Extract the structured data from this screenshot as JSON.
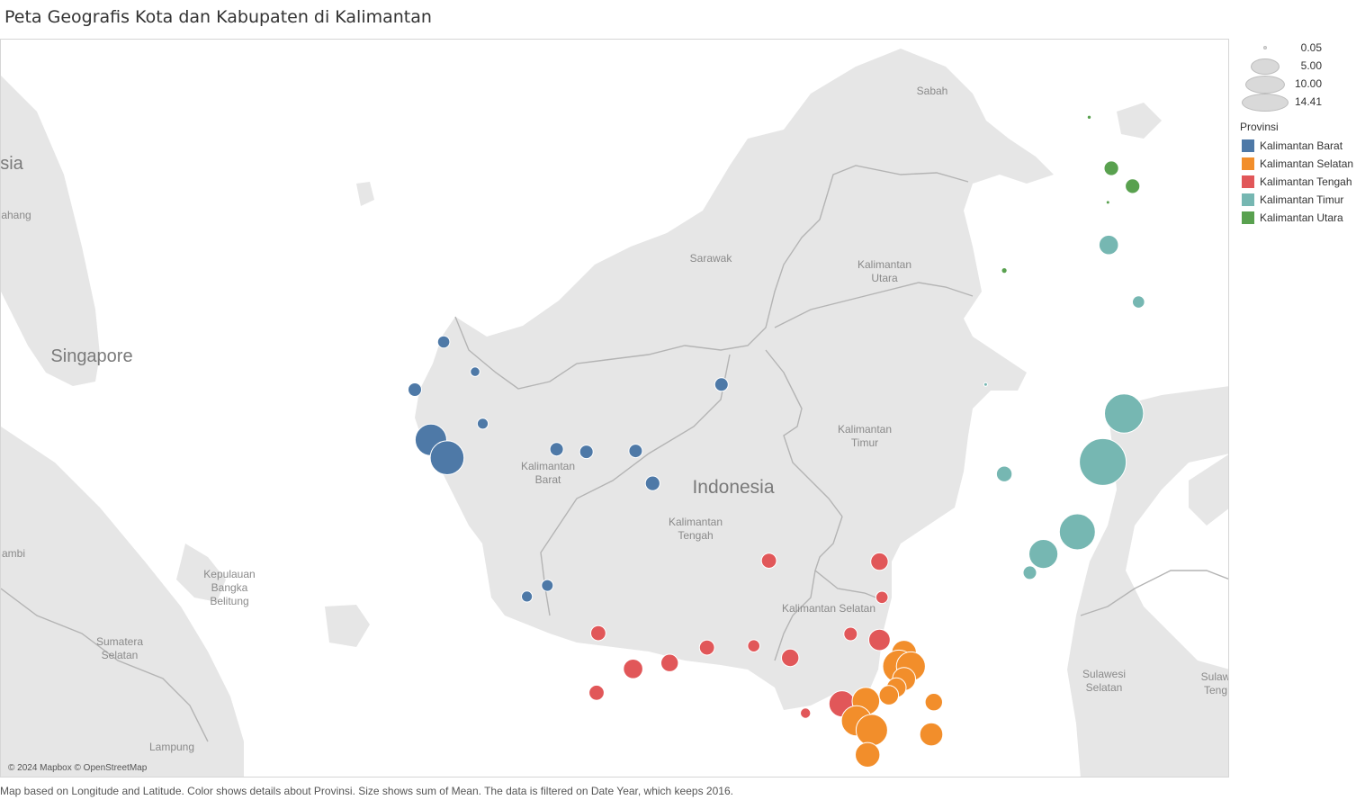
{
  "title": "Peta Geografis Kota dan Kabupaten di Kalimantan",
  "attribution": "© 2024 Mapbox © OpenStreetMap",
  "caption": "Map based on Longitude and Latitude.  Color shows details about Provinsi.  Size shows sum of Mean. The data is filtered on Date Year, which keeps 2016.",
  "colors": {
    "water": "#ffffff",
    "land": "#e6e6e6",
    "border": "#b4b4b4",
    "Kalimantan Barat": "#4e79a7",
    "Kalimantan Selatan": "#f28e2b",
    "Kalimantan Tengah": "#e15759",
    "Kalimantan Timur": "#76b7b2",
    "Kalimantan Utara": "#59a14f"
  },
  "legend": {
    "size_values": [
      "0.05",
      "5.00",
      "10.00",
      "14.41"
    ],
    "color_title": "Provinsi",
    "color_items": [
      "Kalimantan Barat",
      "Kalimantan Selatan",
      "Kalimantan Tengah",
      "Kalimantan Timur",
      "Kalimantan Utara"
    ]
  },
  "map_labels": {
    "sabah": "Sabah",
    "sarawak": "Sarawak",
    "kaltara": [
      "Kalimantan",
      "Utara"
    ],
    "kaltim": [
      "Kalimantan",
      "Timur"
    ],
    "kalbar": [
      "Kalimantan",
      "Barat"
    ],
    "kalteng": [
      "Kalimantan",
      "Tengah"
    ],
    "kalsel_partial": "Kalimantan Selatan",
    "indonesia": "Indonesia",
    "singapore": "Singapore",
    "sia": "sia",
    "pahang": "ahang",
    "jambi": "ambi",
    "bangka": [
      "Kepulauan",
      "Bangka",
      "Belitung"
    ],
    "sumsel": [
      "Sumatera",
      "Selatan"
    ],
    "lampung": "Lampung",
    "sulsel": [
      "Sulawesi",
      "Selatan"
    ],
    "sulteng": [
      "Sulaw",
      "Teng"
    ]
  },
  "chart_data": {
    "type": "scatter",
    "encoding": "Longitude and Latitude; color = Provinsi; size = sum of Mean",
    "size_scale": [
      0.05,
      14.41
    ],
    "points": [
      {
        "prov": "Kalimantan Barat",
        "lon": 109.0,
        "lat": 1.36,
        "mean": 1.0
      },
      {
        "prov": "Kalimantan Barat",
        "lon": 109.37,
        "lat": 1.01,
        "mean": 0.6
      },
      {
        "prov": "Kalimantan Barat",
        "lon": 108.66,
        "lat": 0.8,
        "mean": 1.2
      },
      {
        "prov": "Kalimantan Barat",
        "lon": 109.46,
        "lat": 0.4,
        "mean": 0.8
      },
      {
        "prov": "Kalimantan Barat",
        "lon": 108.85,
        "lat": 0.21,
        "mean": 6.5
      },
      {
        "prov": "Kalimantan Barat",
        "lon": 109.04,
        "lat": 0.0,
        "mean": 7.5
      },
      {
        "prov": "Kalimantan Barat",
        "lon": 110.33,
        "lat": 0.1,
        "mean": 1.2
      },
      {
        "prov": "Kalimantan Barat",
        "lon": 110.68,
        "lat": 0.07,
        "mean": 1.2
      },
      {
        "prov": "Kalimantan Barat",
        "lon": 111.26,
        "lat": 0.08,
        "mean": 1.2
      },
      {
        "prov": "Kalimantan Barat",
        "lon": 111.46,
        "lat": -0.3,
        "mean": 1.4
      },
      {
        "prov": "Kalimantan Barat",
        "lon": 112.27,
        "lat": 0.86,
        "mean": 1.2
      },
      {
        "prov": "Kalimantan Barat",
        "lon": 110.22,
        "lat": -1.5,
        "mean": 0.9
      },
      {
        "prov": "Kalimantan Barat",
        "lon": 109.98,
        "lat": -1.63,
        "mean": 0.8
      },
      {
        "prov": "Kalimantan Tengah",
        "lon": 110.82,
        "lat": -2.06,
        "mean": 1.5
      },
      {
        "prov": "Kalimantan Tengah",
        "lon": 110.8,
        "lat": -2.76,
        "mean": 1.5
      },
      {
        "prov": "Kalimantan Tengah",
        "lon": 111.23,
        "lat": -2.48,
        "mean": 2.5
      },
      {
        "prov": "Kalimantan Tengah",
        "lon": 111.66,
        "lat": -2.41,
        "mean": 2.0
      },
      {
        "prov": "Kalimantan Tengah",
        "lon": 112.1,
        "lat": -2.23,
        "mean": 1.5
      },
      {
        "prov": "Kalimantan Tengah",
        "lon": 112.65,
        "lat": -2.21,
        "mean": 1.0
      },
      {
        "prov": "Kalimantan Tengah",
        "lon": 113.08,
        "lat": -2.35,
        "mean": 2.0
      },
      {
        "prov": "Kalimantan Tengah",
        "lon": 113.79,
        "lat": -2.07,
        "mean": 1.2
      },
      {
        "prov": "Kalimantan Tengah",
        "lon": 114.13,
        "lat": -2.14,
        "mean": 3.0
      },
      {
        "prov": "Kalimantan Tengah",
        "lon": 114.16,
        "lat": -1.64,
        "mean": 1.0
      },
      {
        "prov": "Kalimantan Tengah",
        "lon": 114.13,
        "lat": -1.22,
        "mean": 2.0
      },
      {
        "prov": "Kalimantan Tengah",
        "lon": 112.83,
        "lat": -1.21,
        "mean": 1.5
      },
      {
        "prov": "Kalimantan Tengah",
        "lon": 113.26,
        "lat": -3.0,
        "mean": 0.7
      },
      {
        "prov": "Kalimantan Tengah",
        "lon": 113.69,
        "lat": -2.89,
        "mean": 4.5
      },
      {
        "prov": "Kalimantan Selatan",
        "lon": 114.42,
        "lat": -2.29,
        "mean": 4.0
      },
      {
        "prov": "Kalimantan Selatan",
        "lon": 114.36,
        "lat": -2.45,
        "mean": 7.0
      },
      {
        "prov": "Kalimantan Selatan",
        "lon": 114.5,
        "lat": -2.45,
        "mean": 5.5
      },
      {
        "prov": "Kalimantan Selatan",
        "lon": 114.42,
        "lat": -2.6,
        "mean": 3.5
      },
      {
        "prov": "Kalimantan Selatan",
        "lon": 114.33,
        "lat": -2.7,
        "mean": 2.5
      },
      {
        "prov": "Kalimantan Selatan",
        "lon": 114.24,
        "lat": -2.79,
        "mean": 2.5
      },
      {
        "prov": "Kalimantan Selatan",
        "lon": 113.97,
        "lat": -2.86,
        "mean": 5.0
      },
      {
        "prov": "Kalimantan Selatan",
        "lon": 113.86,
        "lat": -3.09,
        "mean": 6.0
      },
      {
        "prov": "Kalimantan Selatan",
        "lon": 114.04,
        "lat": -3.2,
        "mean": 6.5
      },
      {
        "prov": "Kalimantan Selatan",
        "lon": 113.99,
        "lat": -3.49,
        "mean": 4.0
      },
      {
        "prov": "Kalimantan Selatan",
        "lon": 114.77,
        "lat": -2.87,
        "mean": 2.0
      },
      {
        "prov": "Kalimantan Selatan",
        "lon": 114.74,
        "lat": -3.25,
        "mean": 3.5
      },
      {
        "prov": "Kalimantan Timur",
        "lon": 116.83,
        "lat": 2.5,
        "mean": 2.5
      },
      {
        "prov": "Kalimantan Timur",
        "lon": 117.18,
        "lat": 1.83,
        "mean": 1.0
      },
      {
        "prov": "Kalimantan Timur",
        "lon": 115.38,
        "lat": 0.86,
        "mean": 0.05
      },
      {
        "prov": "Kalimantan Timur",
        "lon": 117.01,
        "lat": 0.52,
        "mean": 10.0
      },
      {
        "prov": "Kalimantan Timur",
        "lon": 116.76,
        "lat": -0.05,
        "mean": 14.41
      },
      {
        "prov": "Kalimantan Timur",
        "lon": 116.46,
        "lat": -0.87,
        "mean": 8.5
      },
      {
        "prov": "Kalimantan Timur",
        "lon": 115.6,
        "lat": -0.19,
        "mean": 1.6
      },
      {
        "prov": "Kalimantan Timur",
        "lon": 116.06,
        "lat": -1.13,
        "mean": 5.5
      },
      {
        "prov": "Kalimantan Timur",
        "lon": 115.9,
        "lat": -1.35,
        "mean": 1.2
      },
      {
        "prov": "Kalimantan Utara",
        "lon": 116.6,
        "lat": 4.0,
        "mean": 0.1
      },
      {
        "prov": "Kalimantan Utara",
        "lon": 116.86,
        "lat": 3.4,
        "mean": 1.4
      },
      {
        "prov": "Kalimantan Utara",
        "lon": 117.11,
        "lat": 3.19,
        "mean": 1.4
      },
      {
        "prov": "Kalimantan Utara",
        "lon": 116.82,
        "lat": 3.0,
        "mean": 0.05
      },
      {
        "prov": "Kalimantan Utara",
        "lon": 115.6,
        "lat": 2.2,
        "mean": 0.2
      }
    ]
  }
}
